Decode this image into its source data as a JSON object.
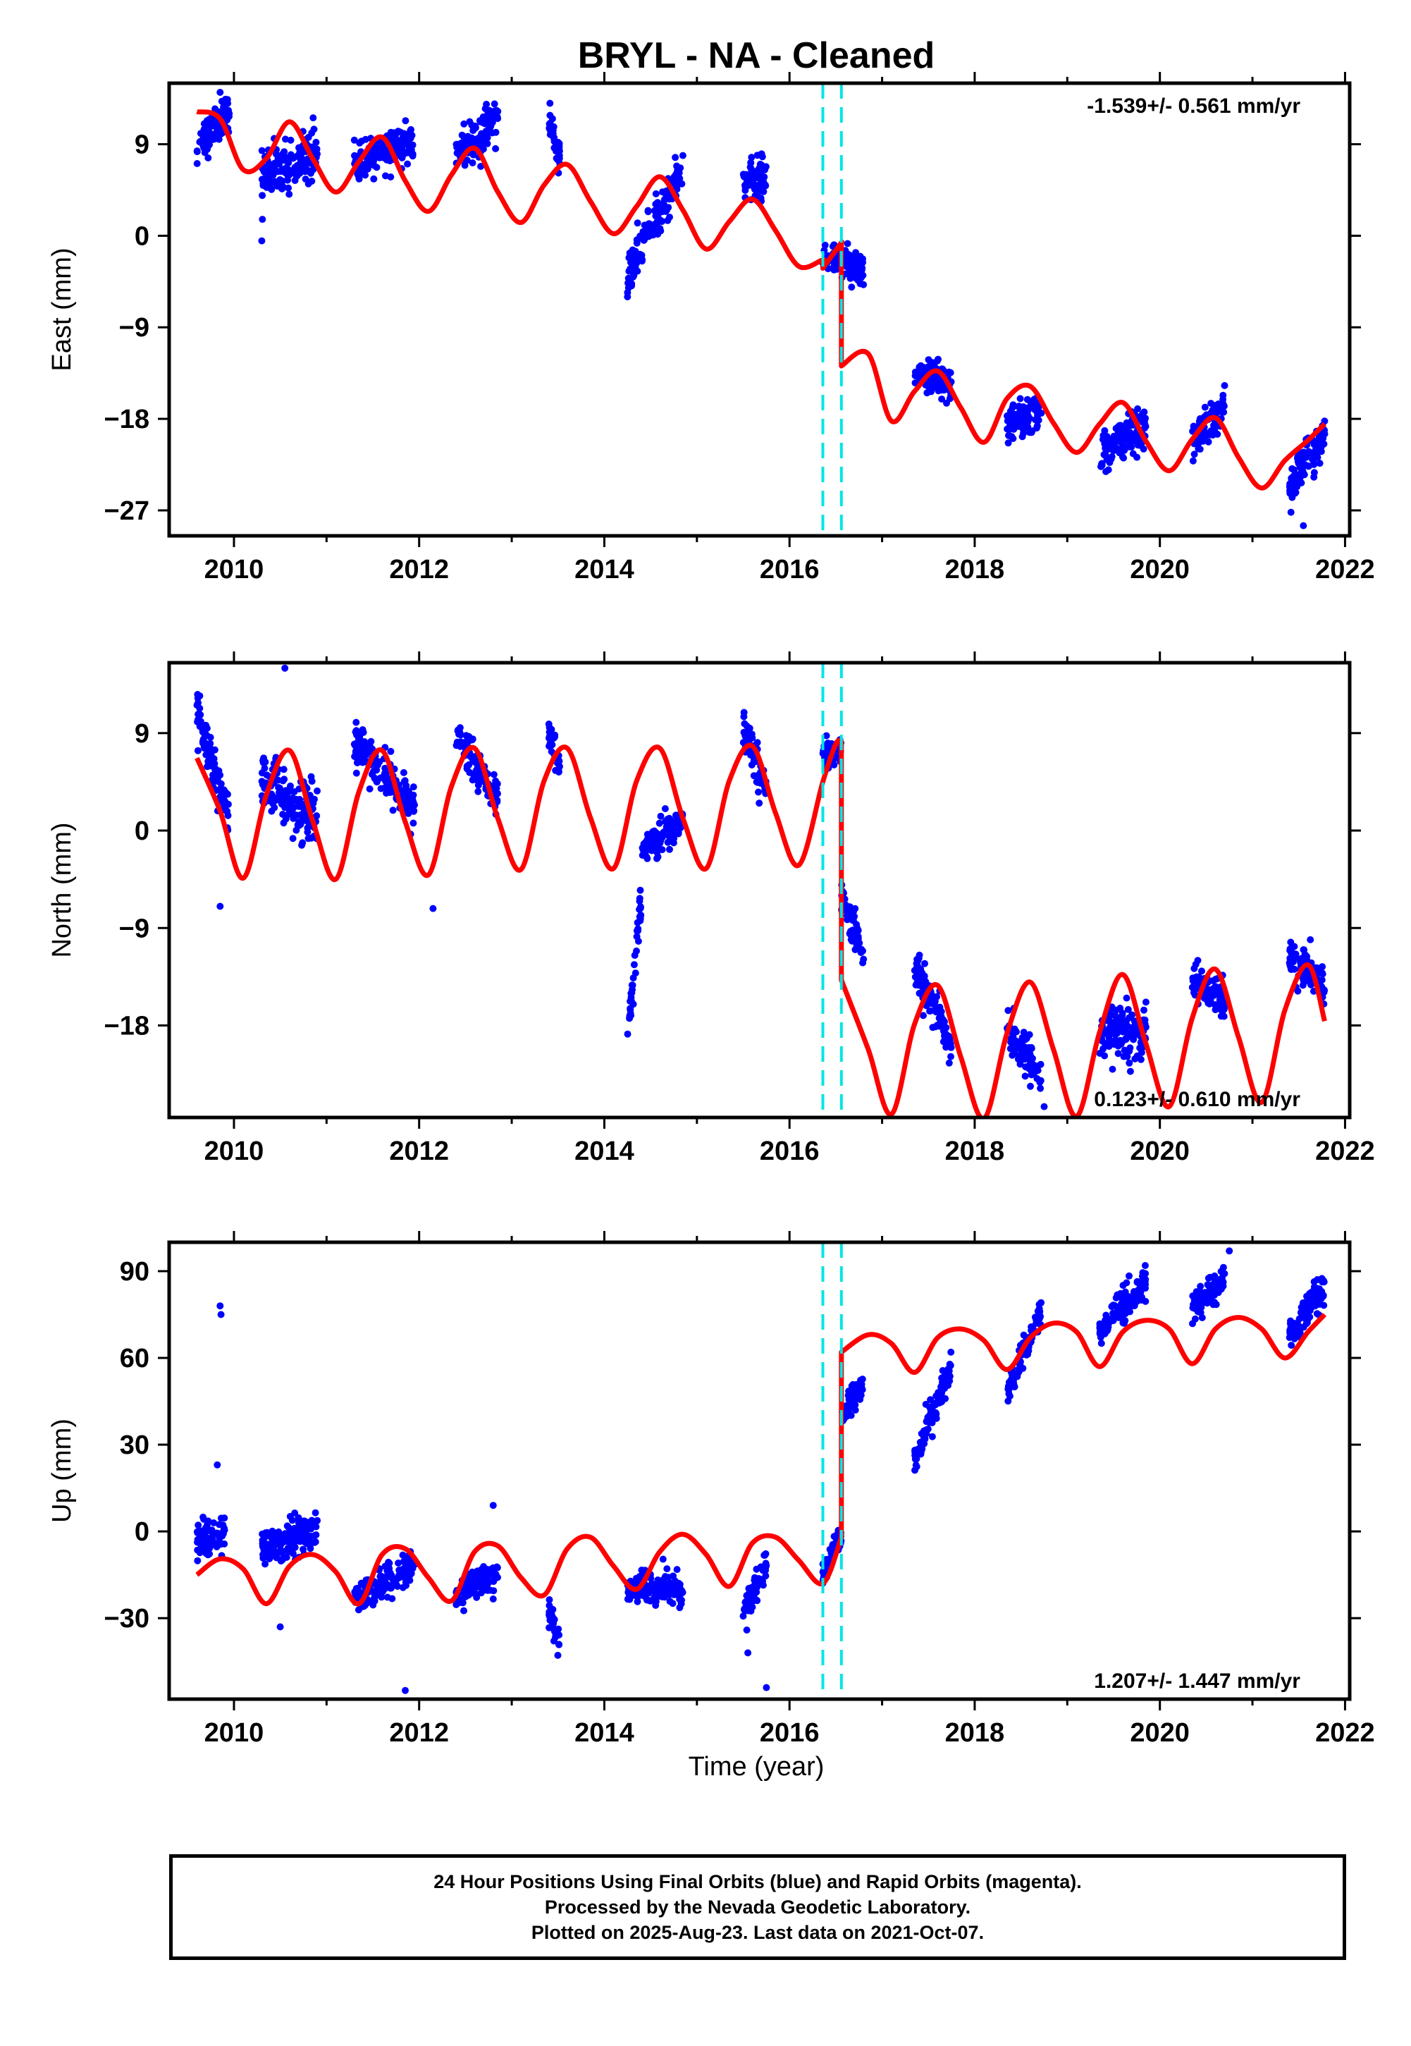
{
  "title": "BRYL  - NA - Cleaned",
  "x_axis": {
    "label": "Time (year)",
    "range": [
      2009.3,
      2022.05
    ],
    "ticks": [
      2010,
      2012,
      2014,
      2016,
      2018,
      2020,
      2022
    ],
    "tick_labels": [
      "2010",
      "2012",
      "2014",
      "2016",
      "2018",
      "2020",
      "2022"
    ]
  },
  "offset_lines": {
    "color": "#00e5e5",
    "years": [
      2016.36,
      2016.56
    ]
  },
  "colors": {
    "points": "#0000ff",
    "model": "#ff0000",
    "frame": "#000000",
    "offsets": "#00e5e5"
  },
  "footer": {
    "line1": "24 Hour Positions Using Final Orbits (blue) and Rapid Orbits (magenta).",
    "line2": "Processed by the Nevada Geodetic Laboratory.",
    "line3": "Plotted on 2025-Aug-23. Last data on 2021-Oct-07."
  },
  "chart_data": [
    {
      "type": "scatter",
      "title": "BRYL  - NA - Cleaned",
      "ylabel": "East (mm)",
      "xlabel": "",
      "xlim": [
        2009.3,
        2022.05
      ],
      "ylim": [
        -29.5,
        15
      ],
      "yticks": [
        9,
        0,
        -9,
        -18,
        -27
      ],
      "ytick_labels": [
        "9",
        "0",
        "−9",
        "−18",
        "−27"
      ],
      "rate_text": "-1.539+/- 0.561 mm/yr",
      "rate_position": "top-right",
      "model": {
        "name": "model",
        "x": [
          2009.6,
          2009.85,
          2010.1,
          2010.35,
          2010.6,
          2010.85,
          2011.1,
          2011.35,
          2011.6,
          2011.85,
          2012.1,
          2012.35,
          2012.6,
          2012.85,
          2013.1,
          2013.35,
          2013.6,
          2013.85,
          2014.1,
          2014.35,
          2014.6,
          2014.85,
          2015.1,
          2015.35,
          2015.6,
          2015.85,
          2016.1,
          2016.35,
          2016.36,
          2016.36,
          2016.55,
          2016.56,
          2016.56,
          2016.85,
          2017.1,
          2017.35,
          2017.6,
          2017.85,
          2018.1,
          2018.35,
          2018.6,
          2018.85,
          2019.1,
          2019.35,
          2019.6,
          2019.85,
          2020.1,
          2020.35,
          2020.6,
          2020.85,
          2021.1,
          2021.35,
          2021.6,
          2021.78
        ],
        "y": [
          12.2,
          11.5,
          6.5,
          7.6,
          11.2,
          7.6,
          4.3,
          7.3,
          9.7,
          5.4,
          2.4,
          6.0,
          8.6,
          4.3,
          1.3,
          5.0,
          7.0,
          3.4,
          0.2,
          2.9,
          5.8,
          2.5,
          -1.3,
          1.4,
          3.6,
          0.5,
          -3.0,
          -2.4,
          -2.4,
          -3.2,
          -0.8,
          -0.8,
          -12.8,
          -11.6,
          -18.2,
          -15.3,
          -13.3,
          -16.9,
          -20.3,
          -16.0,
          -14.8,
          -18.4,
          -21.3,
          -18.5,
          -16.4,
          -20.2,
          -23.1,
          -20.0,
          -17.9,
          -21.8,
          -24.8,
          -22.1,
          -20.1,
          -18.5
        ]
      },
      "observation_segments": [
        {
          "x0": 2009.6,
          "x1": 2009.95,
          "y_start": 8.6,
          "y_end": 12.4,
          "spread": 1.7
        },
        {
          "x0": 2010.3,
          "x1": 2010.9,
          "y_start": 5.8,
          "y_end": 8.3,
          "spread": 2.2
        },
        {
          "x0": 2011.3,
          "x1": 2011.95,
          "y_start": 7.0,
          "y_end": 9.2,
          "spread": 1.6
        },
        {
          "x0": 2012.4,
          "x1": 2012.85,
          "y_start": 7.6,
          "y_end": 11.6,
          "spread": 2.0
        },
        {
          "x0": 2013.4,
          "x1": 2013.52,
          "y_start": 11.0,
          "y_end": 7.8,
          "spread": 1.4
        },
        {
          "x0": 2014.25,
          "x1": 2014.85,
          "y_start": -3.8,
          "y_end": 6.8,
          "spread": 1.8
        },
        {
          "x0": 2015.5,
          "x1": 2015.75,
          "y_start": 5.6,
          "y_end": 5.6,
          "spread": 1.9
        },
        {
          "x0": 2016.36,
          "x1": 2016.8,
          "y_start": -2.0,
          "y_end": -3.2,
          "spread": 1.4
        },
        {
          "x0": 2017.35,
          "x1": 2017.75,
          "y_start": -13.6,
          "y_end": -14.4,
          "spread": 1.5
        },
        {
          "x0": 2018.35,
          "x1": 2018.72,
          "y_start": -18.6,
          "y_end": -17.6,
          "spread": 1.8
        },
        {
          "x0": 2019.35,
          "x1": 2019.85,
          "y_start": -21.6,
          "y_end": -18.6,
          "spread": 1.8
        },
        {
          "x0": 2020.35,
          "x1": 2020.7,
          "y_start": -20.2,
          "y_end": -16.6,
          "spread": 1.6
        },
        {
          "x0": 2021.4,
          "x1": 2021.78,
          "y_start": -24.6,
          "y_end": -19.6,
          "spread": 1.8
        }
      ],
      "outliers": [
        {
          "x": 2010.3,
          "y": -0.5
        },
        {
          "x": 2014.25,
          "y": -6.0
        },
        {
          "x": 2021.55,
          "y": -28.5
        },
        {
          "x": 2009.85,
          "y": 14.1
        }
      ]
    },
    {
      "type": "scatter",
      "title": "",
      "ylabel": "North (mm)",
      "xlabel": "",
      "xlim": [
        2009.3,
        2022.05
      ],
      "ylim": [
        -26.5,
        15.5
      ],
      "yticks": [
        9,
        0,
        -9,
        -18
      ],
      "ytick_labels": [
        "9",
        "0",
        "−9",
        "−18"
      ],
      "rate_text": "0.123+/- 0.610 mm/yr",
      "rate_position": "bottom-right",
      "model": {
        "name": "model",
        "x": [
          2009.6,
          2009.85,
          2010.1,
          2010.35,
          2010.6,
          2010.85,
          2011.1,
          2011.35,
          2011.6,
          2011.85,
          2012.1,
          2012.35,
          2012.6,
          2012.85,
          2013.1,
          2013.35,
          2013.6,
          2013.85,
          2014.1,
          2014.35,
          2014.6,
          2014.85,
          2015.1,
          2015.35,
          2015.6,
          2015.85,
          2016.1,
          2016.36,
          2016.5,
          2016.56,
          2016.56,
          2016.85,
          2017.1,
          2017.35,
          2017.6,
          2017.85,
          2018.1,
          2018.35,
          2018.6,
          2018.85,
          2019.1,
          2019.35,
          2019.6,
          2019.85,
          2020.1,
          2020.35,
          2020.6,
          2020.85,
          2021.1,
          2021.35,
          2021.6,
          2021.78
        ],
        "y": [
          6.7,
          1.8,
          -4.4,
          3.3,
          7.4,
          0.9,
          -4.5,
          3.6,
          7.4,
          0.8,
          -4.1,
          4.1,
          7.6,
          1.1,
          -3.6,
          4.6,
          7.6,
          1.2,
          -3.5,
          4.6,
          7.6,
          1.1,
          -3.5,
          4.6,
          7.8,
          1.6,
          -3.2,
          4.5,
          8.0,
          8.2,
          -13.8,
          -20.2,
          -26.2,
          -17.9,
          -14.3,
          -20.9,
          -26.6,
          -18.7,
          -14.0,
          -20.2,
          -26.4,
          -18.6,
          -13.3,
          -19.7,
          -25.5,
          -17.3,
          -12.8,
          -19.1,
          -25.1,
          -16.6,
          -12.4,
          -17.6
        ]
      },
      "observation_segments": [
        {
          "x0": 2009.6,
          "x1": 2009.95,
          "y_start": 11.0,
          "y_end": 1.2,
          "spread": 1.8
        },
        {
          "x0": 2010.3,
          "x1": 2010.9,
          "y_start": 5.0,
          "y_end": 0.8,
          "spread": 2.6
        },
        {
          "x0": 2011.3,
          "x1": 2011.95,
          "y_start": 8.2,
          "y_end": 1.8,
          "spread": 2.0
        },
        {
          "x0": 2012.4,
          "x1": 2012.85,
          "y_start": 8.6,
          "y_end": 3.0,
          "spread": 1.8
        },
        {
          "x0": 2013.4,
          "x1": 2013.52,
          "y_start": 8.8,
          "y_end": 5.4,
          "spread": 1.4
        },
        {
          "x0": 2014.25,
          "x1": 2014.4,
          "y_start": -19.0,
          "y_end": -6.5,
          "spread": 1.4
        },
        {
          "x0": 2014.4,
          "x1": 2014.85,
          "y_start": -2.0,
          "y_end": 0.8,
          "spread": 1.4
        },
        {
          "x0": 2015.5,
          "x1": 2015.75,
          "y_start": 9.6,
          "y_end": 3.6,
          "spread": 1.6
        },
        {
          "x0": 2016.36,
          "x1": 2016.56,
          "y_start": 7.4,
          "y_end": 7.2,
          "spread": 1.2
        },
        {
          "x0": 2016.56,
          "x1": 2016.8,
          "y_start": -5.6,
          "y_end": -11.8,
          "spread": 1.6
        },
        {
          "x0": 2017.35,
          "x1": 2017.75,
          "y_start": -12.4,
          "y_end": -19.6,
          "spread": 1.6
        },
        {
          "x0": 2018.35,
          "x1": 2018.72,
          "y_start": -18.2,
          "y_end": -22.8,
          "spread": 1.8
        },
        {
          "x0": 2019.35,
          "x1": 2019.85,
          "y_start": -19.0,
          "y_end": -18.4,
          "spread": 2.2
        },
        {
          "x0": 2020.35,
          "x1": 2020.7,
          "y_start": -13.8,
          "y_end": -15.8,
          "spread": 1.6
        },
        {
          "x0": 2021.4,
          "x1": 2021.78,
          "y_start": -11.8,
          "y_end": -14.2,
          "spread": 1.6
        }
      ],
      "outliers": [
        {
          "x": 2009.85,
          "y": -7.0
        },
        {
          "x": 2012.15,
          "y": -7.2
        },
        {
          "x": 2018.75,
          "y": -25.5
        },
        {
          "x": 2010.55,
          "y": 15.0
        }
      ]
    },
    {
      "type": "scatter",
      "title": "",
      "ylabel": "Up (mm)",
      "xlabel": "Time (year)",
      "xlim": [
        2009.3,
        2022.05
      ],
      "ylim": [
        -58,
        100
      ],
      "yticks": [
        90,
        60,
        30,
        0,
        -30
      ],
      "ytick_labels": [
        "90",
        "60",
        "30",
        "0",
        "−30"
      ],
      "rate_text": "1.207+/- 1.447 mm/yr",
      "rate_position": "bottom-right",
      "model": {
        "name": "model",
        "x": [
          2009.6,
          2009.85,
          2010.1,
          2010.35,
          2010.6,
          2010.85,
          2011.1,
          2011.35,
          2011.6,
          2011.85,
          2012.1,
          2012.35,
          2012.6,
          2012.85,
          2013.1,
          2013.35,
          2013.6,
          2013.85,
          2014.1,
          2014.35,
          2014.6,
          2014.85,
          2015.1,
          2015.35,
          2015.6,
          2015.85,
          2016.1,
          2016.36,
          2016.56,
          2016.56,
          2016.85,
          2017.1,
          2017.35,
          2017.6,
          2017.85,
          2018.1,
          2018.35,
          2018.6,
          2018.85,
          2019.1,
          2019.35,
          2019.6,
          2019.85,
          2020.1,
          2020.35,
          2020.6,
          2020.85,
          2021.1,
          2021.35,
          2021.6,
          2021.78
        ],
        "y": [
          -15,
          -9.5,
          -13,
          -25,
          -12,
          -8,
          -14,
          -25,
          -8,
          -6,
          -16,
          -24,
          -7,
          -5,
          -16,
          -22,
          -6,
          -2,
          -12,
          -20,
          -7,
          -1,
          -8,
          -19,
          -4,
          -2,
          -10,
          -18,
          -2,
          62,
          68,
          65,
          55,
          67,
          70,
          66,
          56,
          67,
          72,
          69,
          57,
          69,
          73,
          70,
          58,
          70,
          74,
          70,
          60,
          69,
          75
        ]
      },
      "observation_segments": [
        {
          "x0": 2009.6,
          "x1": 2009.9,
          "y_start": -3.0,
          "y_end": -1.0,
          "spread": 6.0
        },
        {
          "x0": 2010.3,
          "x1": 2010.9,
          "y_start": -6.0,
          "y_end": 1.0,
          "spread": 6.0
        },
        {
          "x0": 2011.3,
          "x1": 2011.95,
          "y_start": -24.0,
          "y_end": -12.0,
          "spread": 5.0
        },
        {
          "x0": 2012.4,
          "x1": 2012.85,
          "y_start": -22.0,
          "y_end": -14.0,
          "spread": 5.0
        },
        {
          "x0": 2013.4,
          "x1": 2013.52,
          "y_start": -28.0,
          "y_end": -38.0,
          "spread": 4.0
        },
        {
          "x0": 2014.25,
          "x1": 2014.85,
          "y_start": -20.0,
          "y_end": -20.0,
          "spread": 5.0
        },
        {
          "x0": 2015.5,
          "x1": 2015.75,
          "y_start": -28.0,
          "y_end": -12.0,
          "spread": 5.0
        },
        {
          "x0": 2016.36,
          "x1": 2016.56,
          "y_start": -15.0,
          "y_end": 0.0,
          "spread": 4.0
        },
        {
          "x0": 2016.56,
          "x1": 2016.8,
          "y_start": 40.0,
          "y_end": 52.0,
          "spread": 4.0
        },
        {
          "x0": 2017.35,
          "x1": 2017.75,
          "y_start": 25.0,
          "y_end": 57.0,
          "spread": 5.0
        },
        {
          "x0": 2018.35,
          "x1": 2018.72,
          "y_start": 48.0,
          "y_end": 76.0,
          "spread": 5.0
        },
        {
          "x0": 2019.35,
          "x1": 2019.85,
          "y_start": 70.0,
          "y_end": 86.0,
          "spread": 5.0
        },
        {
          "x0": 2020.35,
          "x1": 2020.7,
          "y_start": 76.0,
          "y_end": 88.0,
          "spread": 5.0
        },
        {
          "x0": 2021.4,
          "x1": 2021.78,
          "y_start": 68.0,
          "y_end": 84.0,
          "spread": 5.0
        }
      ],
      "outliers": [
        {
          "x": 2009.85,
          "y": 78
        },
        {
          "x": 2009.86,
          "y": 75
        },
        {
          "x": 2009.82,
          "y": 23
        },
        {
          "x": 2010.5,
          "y": -33
        },
        {
          "x": 2011.85,
          "y": -55
        },
        {
          "x": 2012.8,
          "y": 9
        },
        {
          "x": 2015.75,
          "y": -54
        },
        {
          "x": 2015.55,
          "y": -42
        },
        {
          "x": 2020.75,
          "y": 97
        }
      ]
    }
  ]
}
